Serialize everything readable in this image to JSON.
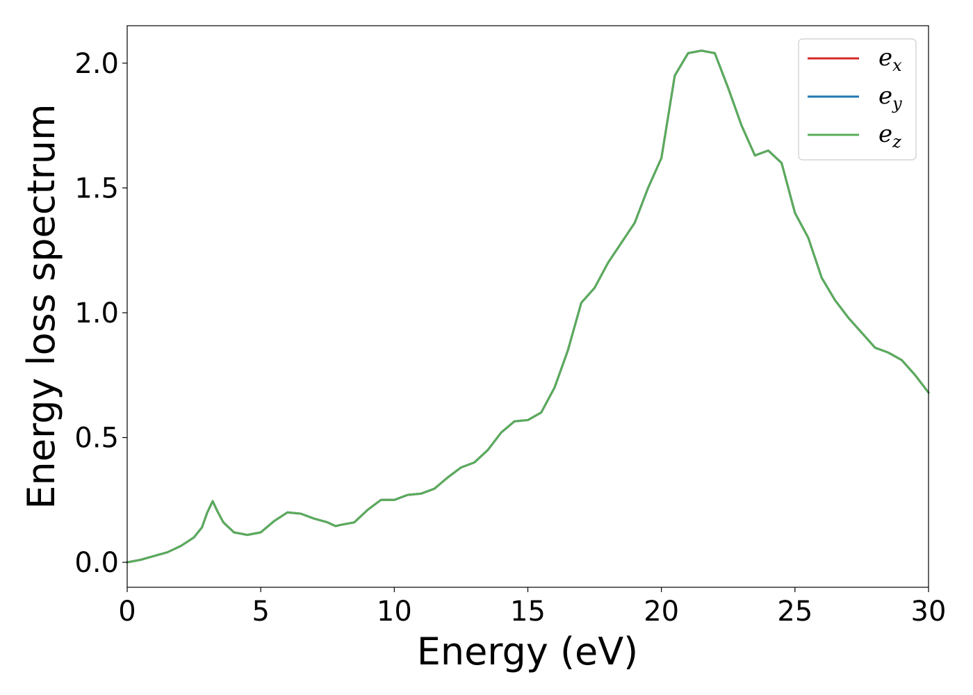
{
  "chart_data": {
    "type": "line",
    "xlabel": "Energy (eV)",
    "ylabel": "Energy loss spectrum",
    "xlim": [
      0,
      30
    ],
    "ylim": [
      -0.1,
      2.15
    ],
    "xticks": [
      0,
      5,
      10,
      15,
      20,
      25,
      30
    ],
    "xtick_labels": [
      "0",
      "5",
      "10",
      "15",
      "20",
      "25",
      "30"
    ],
    "yticks": [
      0.0,
      0.5,
      1.0,
      1.5,
      2.0
    ],
    "ytick_labels": [
      "0.0",
      "0.5",
      "1.0",
      "1.5",
      "2.0"
    ],
    "grid": false,
    "legend_position": "top-right",
    "x": [
      0,
      0.5,
      1.0,
      1.5,
      2.0,
      2.5,
      2.8,
      3.0,
      3.2,
      3.4,
      3.6,
      4.0,
      4.5,
      5.0,
      5.5,
      6.0,
      6.5,
      7.0,
      7.5,
      7.8,
      8.0,
      8.5,
      9.0,
      9.5,
      10.0,
      10.5,
      11.0,
      11.5,
      12.0,
      12.5,
      13.0,
      13.5,
      14.0,
      14.5,
      15.0,
      15.5,
      16.0,
      16.5,
      17.0,
      17.5,
      18.0,
      18.5,
      19.0,
      19.5,
      20.0,
      20.5,
      21.0,
      21.5,
      22.0,
      22.5,
      23.0,
      23.5,
      24.0,
      24.5,
      25.0,
      25.5,
      26.0,
      26.5,
      27.0,
      27.5,
      28.0,
      28.5,
      29.0,
      29.5,
      30.0
    ],
    "series": [
      {
        "name": "e",
        "sub": "x",
        "color": "#d62728",
        "values": [
          0.0,
          0.01,
          0.025,
          0.04,
          0.065,
          0.1,
          0.14,
          0.2,
          0.245,
          0.2,
          0.16,
          0.12,
          0.11,
          0.12,
          0.165,
          0.2,
          0.195,
          0.175,
          0.16,
          0.145,
          0.15,
          0.16,
          0.21,
          0.25,
          0.25,
          0.27,
          0.275,
          0.295,
          0.34,
          0.38,
          0.4,
          0.45,
          0.52,
          0.565,
          0.57,
          0.6,
          0.7,
          0.85,
          1.04,
          1.1,
          1.2,
          1.28,
          1.36,
          1.5,
          1.62,
          1.95,
          2.04,
          2.05,
          2.04,
          1.9,
          1.75,
          1.63,
          1.65,
          1.6,
          1.4,
          1.3,
          1.14,
          1.05,
          0.98,
          0.92,
          0.86,
          0.84,
          0.81,
          0.75,
          0.68
        ]
      },
      {
        "name": "e",
        "sub": "y",
        "color": "#1f77b4",
        "values": [
          0.0,
          0.01,
          0.025,
          0.04,
          0.065,
          0.1,
          0.14,
          0.2,
          0.245,
          0.2,
          0.16,
          0.12,
          0.11,
          0.12,
          0.165,
          0.2,
          0.195,
          0.175,
          0.16,
          0.145,
          0.15,
          0.16,
          0.21,
          0.25,
          0.25,
          0.27,
          0.275,
          0.295,
          0.34,
          0.38,
          0.4,
          0.45,
          0.52,
          0.565,
          0.57,
          0.6,
          0.7,
          0.85,
          1.04,
          1.1,
          1.2,
          1.28,
          1.36,
          1.5,
          1.62,
          1.95,
          2.04,
          2.05,
          2.04,
          1.9,
          1.75,
          1.63,
          1.65,
          1.6,
          1.4,
          1.3,
          1.14,
          1.05,
          0.98,
          0.92,
          0.86,
          0.84,
          0.81,
          0.75,
          0.68
        ]
      },
      {
        "name": "e",
        "sub": "z",
        "color": "#5aac5a",
        "values": [
          0.0,
          0.01,
          0.025,
          0.04,
          0.065,
          0.1,
          0.14,
          0.2,
          0.245,
          0.2,
          0.16,
          0.12,
          0.11,
          0.12,
          0.165,
          0.2,
          0.195,
          0.175,
          0.16,
          0.145,
          0.15,
          0.16,
          0.21,
          0.25,
          0.25,
          0.27,
          0.275,
          0.295,
          0.34,
          0.38,
          0.4,
          0.45,
          0.52,
          0.565,
          0.57,
          0.6,
          0.7,
          0.85,
          1.04,
          1.1,
          1.2,
          1.28,
          1.36,
          1.5,
          1.62,
          1.95,
          2.04,
          2.05,
          2.04,
          1.9,
          1.75,
          1.63,
          1.65,
          1.6,
          1.4,
          1.3,
          1.14,
          1.05,
          0.98,
          0.92,
          0.86,
          0.84,
          0.81,
          0.75,
          0.68
        ]
      }
    ]
  }
}
